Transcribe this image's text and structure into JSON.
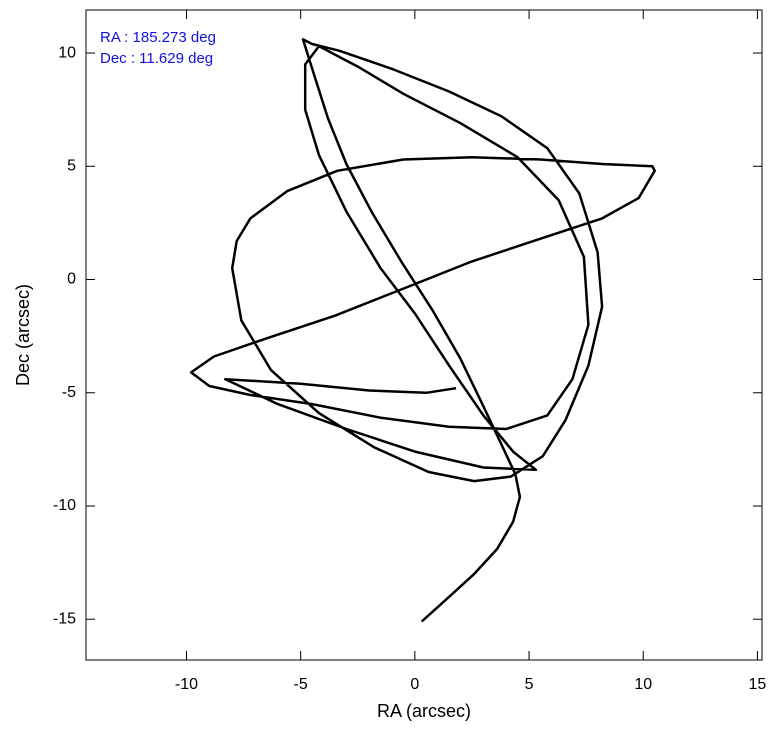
{
  "chart_data": {
    "type": "line",
    "xlabel": "RA (arcsec)",
    "ylabel": "Dec (arcsec)",
    "annotations": [
      "RA : 185.273 deg",
      "Dec : 11.629 deg"
    ],
    "annotation_color": "#1010e0",
    "color": "#000000",
    "xlim": [
      -14.4,
      15.2
    ],
    "ylim": [
      -16.8,
      11.9
    ],
    "xticks": [
      -10,
      -5,
      0,
      5,
      10,
      15
    ],
    "yticks": [
      -15,
      -10,
      -5,
      0,
      5,
      10
    ],
    "x": [
      0.3,
      1.4,
      2.6,
      3.6,
      4.3,
      4.6,
      4.4,
      3.8,
      3,
      2,
      0.8,
      -0.6,
      -1.9,
      -3,
      -3.8,
      -4.4,
      -4.9,
      -4.5,
      -3.3,
      -1,
      1.5,
      3.8,
      5.8,
      7.2,
      8,
      8.2,
      7.6,
      6.6,
      5.6,
      4.2,
      2.6,
      0.6,
      -1.8,
      -4.2,
      -6.3,
      -7.6,
      -8,
      -7.8,
      -7.2,
      -5.6,
      -3.4,
      -0.5,
      2.5,
      5.5,
      8.2,
      10.4,
      10.5,
      9.8,
      8.2,
      5.5,
      2.5,
      -0.5,
      -3.5,
      -6.5,
      -8.8,
      -9.8,
      -9,
      -7.2,
      -4.5,
      -1.5,
      1.5,
      4,
      5.8,
      6.9,
      7.6,
      7.4,
      6.3,
      4.5,
      2,
      -0.5,
      -2.5,
      -4.2,
      -4.8,
      -4.8,
      -4.2,
      -3,
      -1.5,
      0,
      1.5,
      3,
      4.3,
      5.3,
      3,
      0,
      -3,
      -6,
      -8.3,
      -5,
      -2,
      0.5,
      1.8
    ],
    "values": [
      -15.1,
      -14.1,
      -13,
      -11.9,
      -10.7,
      -9.6,
      -8.6,
      -7.3,
      -5.6,
      -3.5,
      -1.4,
      0.8,
      3,
      5.1,
      7.1,
      9,
      10.6,
      10.4,
      10.1,
      9.3,
      8.3,
      7.2,
      5.8,
      3.8,
      1.2,
      -1.2,
      -3.8,
      -6.2,
      -7.8,
      -8.7,
      -8.9,
      -8.5,
      -7.4,
      -5.9,
      -4,
      -1.8,
      0.5,
      1.7,
      2.7,
      3.9,
      4.8,
      5.3,
      5.4,
      5.3,
      5.1,
      5,
      4.8,
      3.6,
      2.7,
      1.8,
      0.8,
      -0.4,
      -1.6,
      -2.6,
      -3.4,
      -4.1,
      -4.7,
      -5.1,
      -5.5,
      -6.1,
      -6.5,
      -6.6,
      -6,
      -4.4,
      -2,
      1,
      3.5,
      5.4,
      6.9,
      8.2,
      9.4,
      10.3,
      9.5,
      7.5,
      5.5,
      3,
      0.5,
      -1.5,
      -3.8,
      -6,
      -7.6,
      -8.4,
      -8.3,
      -7.6,
      -6.6,
      -5.5,
      -4.4,
      -4.6,
      -4.9,
      -5,
      -4.8
    ]
  }
}
